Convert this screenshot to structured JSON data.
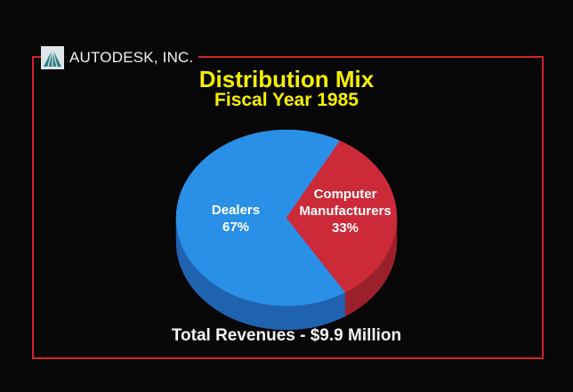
{
  "brand": {
    "name": "AUTODESK, INC.",
    "logo_icon": "autodesk-logo-icon"
  },
  "colors": {
    "background": "#070707",
    "frame": "#d6212b",
    "title": "#f6f000",
    "dealers": "#2a8fe6",
    "dealers_side": "#1f63b0",
    "computer_manufacturers": "#cc2a38",
    "computer_manufacturers_side": "#9c1f2c"
  },
  "chart_data": {
    "type": "pie",
    "title": "Distribution Mix",
    "subtitle": "Fiscal Year 1985",
    "style": "3d",
    "slices": [
      {
        "label_lines": [
          "Dealers"
        ],
        "value": 67,
        "value_label": "67%"
      },
      {
        "label_lines": [
          "Computer",
          "Manufacturers"
        ],
        "value": 33,
        "value_label": "33%"
      }
    ],
    "footer": "Total Revenues - $9.9 Million"
  }
}
